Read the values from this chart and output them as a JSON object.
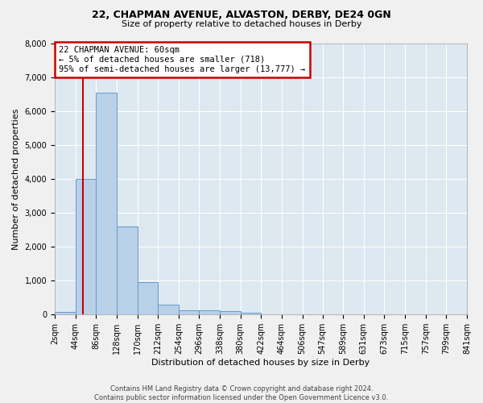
{
  "title1": "22, CHAPMAN AVENUE, ALVASTON, DERBY, DE24 0GN",
  "title2": "Size of property relative to detached houses in Derby",
  "xlabel": "Distribution of detached houses by size in Derby",
  "ylabel": "Number of detached properties",
  "footer1": "Contains HM Land Registry data © Crown copyright and database right 2024.",
  "footer2": "Contains public sector information licensed under the Open Government Licence v3.0.",
  "annotation_line1": "22 CHAPMAN AVENUE: 60sqm",
  "annotation_line2": "← 5% of detached houses are smaller (718)",
  "annotation_line3": "95% of semi-detached houses are larger (13,777) →",
  "bar_color": "#b8d0e8",
  "bar_edge_color": "#6699cc",
  "bg_color": "#dde8f0",
  "grid_color": "#ffffff",
  "fig_bg_color": "#f0f0f0",
  "vline_color": "#cc0000",
  "annotation_box_edge": "#cc0000",
  "bin_labels": [
    "2sqm",
    "44sqm",
    "86sqm",
    "128sqm",
    "170sqm",
    "212sqm",
    "254sqm",
    "296sqm",
    "338sqm",
    "380sqm",
    "422sqm",
    "464sqm",
    "506sqm",
    "547sqm",
    "589sqm",
    "631sqm",
    "673sqm",
    "715sqm",
    "757sqm",
    "799sqm",
    "841sqm"
  ],
  "bin_edges": [
    2,
    44,
    86,
    128,
    170,
    212,
    254,
    296,
    338,
    380,
    422,
    464,
    506,
    547,
    589,
    631,
    673,
    715,
    757,
    799,
    841
  ],
  "counts": [
    80,
    4000,
    6550,
    2600,
    950,
    300,
    130,
    115,
    90,
    60,
    0,
    0,
    0,
    0,
    0,
    0,
    0,
    0,
    0,
    0
  ],
  "vline_x": 60,
  "ylim": [
    0,
    8000
  ],
  "yticks": [
    0,
    1000,
    2000,
    3000,
    4000,
    5000,
    6000,
    7000,
    8000
  ],
  "title1_fontsize": 9,
  "title2_fontsize": 8,
  "ylabel_fontsize": 8,
  "xlabel_fontsize": 8,
  "tick_fontsize": 7,
  "footer_fontsize": 6
}
